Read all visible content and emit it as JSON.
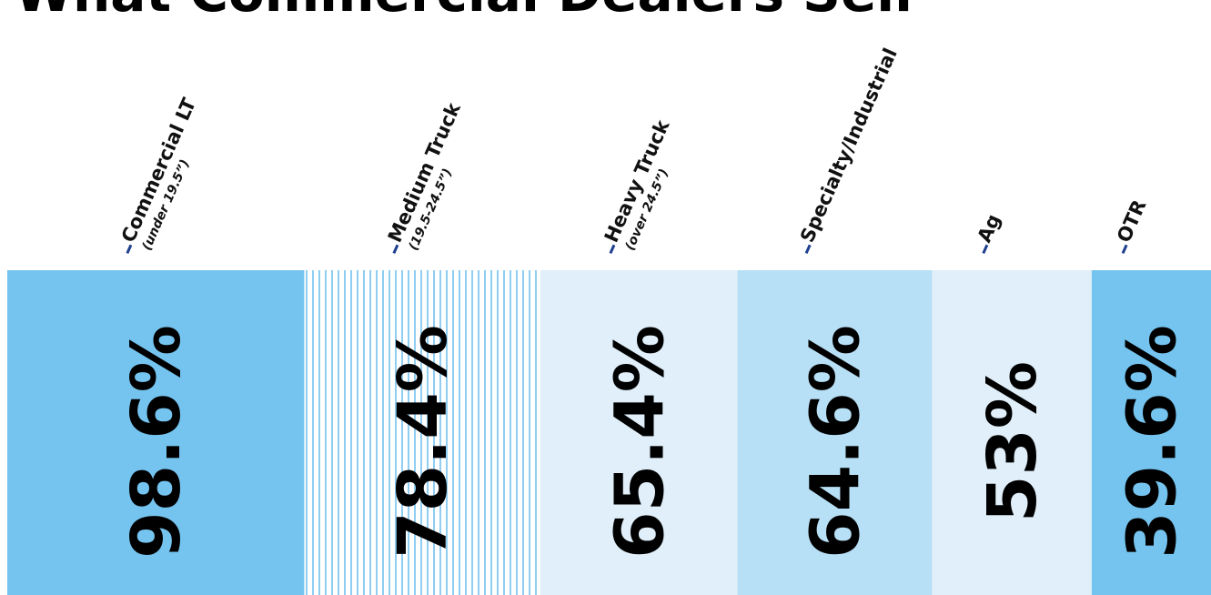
{
  "chart_data": {
    "type": "bar",
    "title": "What Commercial Dealers Sell",
    "categories": [
      "Commercial LT",
      "Medium Truck",
      "Heavy Truck",
      "Specialty/Industrial",
      "Ag",
      "OTR"
    ],
    "sublabels": [
      "(under 19.5”)",
      "(19.5-24.5”)",
      "(over 24.5”)",
      null,
      null,
      null
    ],
    "values": [
      98.6,
      78.4,
      65.4,
      64.6,
      53,
      39.6
    ],
    "value_labels": [
      "98.6%",
      "78.4%",
      "65.4%",
      "64.6%",
      "53%",
      "39.6%"
    ],
    "colors": [
      "#75c4ef",
      "striped",
      "#e0eff9",
      "#b7dff5",
      "#e0eff9",
      "#75c4ef"
    ]
  }
}
